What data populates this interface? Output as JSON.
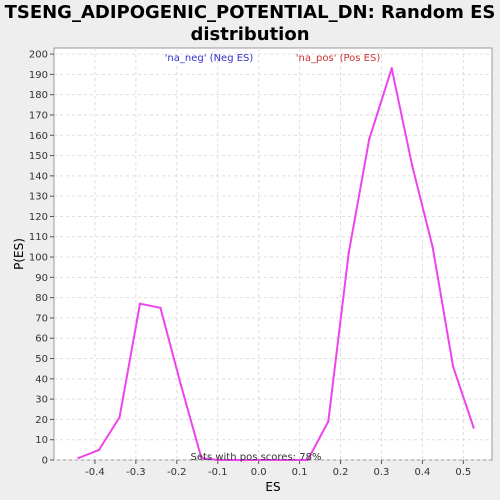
{
  "chart_data": {
    "type": "line",
    "title": "TSENG_ADIPOGENIC_POTENTIAL_DN: Random ES distribution",
    "xlabel": "ES",
    "ylabel": "P(ES)",
    "xlim": [
      -0.5,
      0.57
    ],
    "ylim": [
      0,
      203
    ],
    "x_ticks": [
      -0.4,
      -0.3,
      -0.2,
      -0.1,
      0.0,
      0.1,
      0.2,
      0.3,
      0.4,
      0.5
    ],
    "x_tick_labels": [
      "-0.4",
      "-0.3",
      "-0.2",
      "-0.1",
      "0.0",
      "0.1",
      "0.2",
      "0.3",
      "0.4",
      "0.5"
    ],
    "y_ticks": [
      0,
      10,
      20,
      30,
      40,
      50,
      60,
      70,
      80,
      90,
      100,
      110,
      120,
      130,
      140,
      150,
      160,
      170,
      180,
      190,
      200
    ],
    "grid": true,
    "legend": [
      {
        "label": "'na_neg' (Neg ES)",
        "color": "#3333cc"
      },
      {
        "label": "'na_pos' (Pos ES)",
        "color": "#cc3333"
      }
    ],
    "annotation": "Sets with pos scores: 78%",
    "series": [
      {
        "color": "#ee44ee",
        "x": [
          -0.44,
          -0.39,
          -0.34,
          -0.29,
          -0.24,
          -0.19,
          -0.14,
          -0.1,
          -0.05,
          0.0,
          0.05,
          0.12,
          0.17,
          0.22,
          0.27,
          0.325,
          0.375,
          0.425,
          0.475,
          0.525
        ],
        "y": [
          1,
          5,
          21,
          77,
          75,
          37,
          1,
          0,
          0,
          0,
          0,
          0,
          19,
          102,
          158,
          193,
          145,
          105,
          46,
          16
        ]
      }
    ]
  }
}
